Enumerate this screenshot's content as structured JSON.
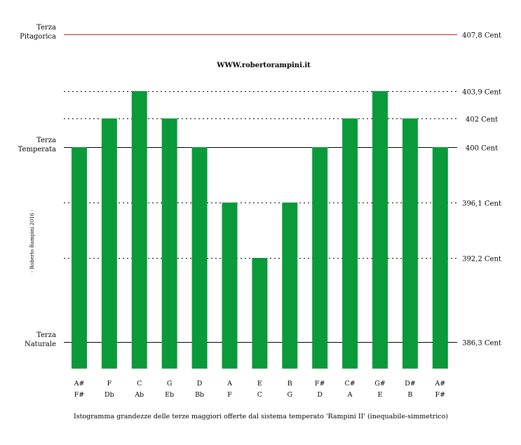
{
  "chart_data": {
    "type": "bar",
    "categories": [
      {
        "top": "A#",
        "bottom": "F#"
      },
      {
        "top": "F",
        "bottom": "Db"
      },
      {
        "top": "C",
        "bottom": "Ab"
      },
      {
        "top": "G",
        "bottom": "Eb"
      },
      {
        "top": "D",
        "bottom": "Bb"
      },
      {
        "top": "A",
        "bottom": "F"
      },
      {
        "top": "E",
        "bottom": "C"
      },
      {
        "top": "B",
        "bottom": "G"
      },
      {
        "top": "F#",
        "bottom": "D"
      },
      {
        "top": "C#",
        "bottom": "A"
      },
      {
        "top": "G#",
        "bottom": "E"
      },
      {
        "top": "D#",
        "bottom": "B"
      },
      {
        "top": "A#",
        "bottom": "F#"
      }
    ],
    "values": [
      400,
      402,
      403.9,
      402,
      400,
      396.1,
      392.2,
      396.1,
      400,
      402,
      403.9,
      402,
      400
    ],
    "bar_color": "#0a9a3a",
    "reference_lines": [
      {
        "value": 407.8,
        "label": "407,8 Cent",
        "left_label": [
          "Terza",
          "Pitagorica"
        ],
        "style": "solid",
        "color": "#cc2222"
      },
      {
        "value": 403.9,
        "label": "403,9 Cent",
        "style": "dotted",
        "color": "#000000"
      },
      {
        "value": 402,
        "label": "402 Cent",
        "style": "dotted",
        "color": "#000000"
      },
      {
        "value": 400,
        "label": "400 Cent",
        "left_label": [
          "Terza",
          "Temperata"
        ],
        "style": "solid",
        "color": "#000000"
      },
      {
        "value": 396.1,
        "label": "396,1 Cent",
        "style": "dotted",
        "color": "#000000"
      },
      {
        "value": 392.2,
        "label": "392,2 Cent",
        "style": "dotted",
        "color": "#000000"
      },
      {
        "value": 386.3,
        "label": "386,3 Cent",
        "left_label": [
          "Terza",
          "Naturale"
        ],
        "style": "solid",
        "color": "#000000"
      }
    ],
    "website": "WWW.robertorampini.it",
    "credit": "- Roberto Rampini 2016 -",
    "caption": "Istogramma grandezze delle terze maggiori offerte dal sistema temperato 'Rampini II' (inequabile-simmetrico)"
  }
}
